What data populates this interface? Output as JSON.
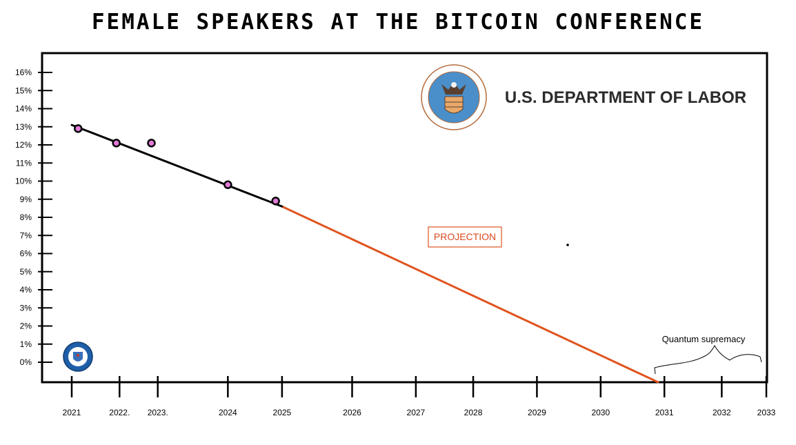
{
  "chart_data": {
    "type": "line",
    "title": "FEMALE SPEAKERS AT THE BITCOIN CONFERENCE",
    "xlabel": "",
    "ylabel": "",
    "x_ticks": [
      "2021",
      "2022.",
      "2023.",
      "2024",
      "2025",
      "2026",
      "2027",
      "2028",
      "2029",
      "2030",
      "2031",
      "2032",
      "2033"
    ],
    "x_tick_positions": [
      2021.0,
      2021.75,
      2022.35,
      2023.45,
      2024.3,
      2025.4,
      2026.4,
      2027.3,
      2028.3,
      2029.3,
      2030.3,
      2031.2,
      2031.9
    ],
    "y_ticks": [
      "16%",
      "15%",
      "14%",
      "13%",
      "12%",
      "11%",
      "10%",
      "9%",
      "8%",
      "7%",
      "6%",
      "5%",
      "4%",
      "3%",
      "2%",
      "1%",
      "0%"
    ],
    "y_tick_values": [
      16,
      15,
      14,
      13,
      12,
      11,
      10,
      9,
      8,
      7,
      6,
      5,
      4,
      3,
      2,
      1,
      0
    ],
    "series": [
      {
        "role": "observed",
        "color": "#000000",
        "points": [
          {
            "x": 2021.1,
            "y": 12.9
          },
          {
            "x": 2021.7,
            "y": 12.1
          },
          {
            "x": 2022.25,
            "y": 12.1
          },
          {
            "x": 2023.45,
            "y": 9.8
          },
          {
            "x": 2024.2,
            "y": 8.9
          }
        ],
        "trend": [
          {
            "x": 2021.0,
            "y": 13.1
          },
          {
            "x": 2024.3,
            "y": 8.6
          }
        ]
      },
      {
        "role": "projection",
        "color": "#e0541f",
        "line": [
          {
            "x": 2024.3,
            "y": 8.6
          },
          {
            "x": 2030.2,
            "y": -1.1
          }
        ]
      }
    ],
    "annotations": [
      {
        "label": "PROJECTION",
        "kind": "boxed-label"
      },
      {
        "label": "Quantum supremacy",
        "kind": "brace-label"
      }
    ],
    "grid": false,
    "legend": "none"
  },
  "logos": {
    "dol_name": "U.S. DEPARTMENT OF LABOR",
    "dol_seal": "department-of-labor-seal",
    "cia_seal": "cia-seal"
  },
  "colors": {
    "observed": "#000000",
    "projection": "#e0541f",
    "marker_fill": "#e07ad6",
    "dol_blue": "#4a8fc9",
    "cia_blue": "#1f5fa8"
  }
}
